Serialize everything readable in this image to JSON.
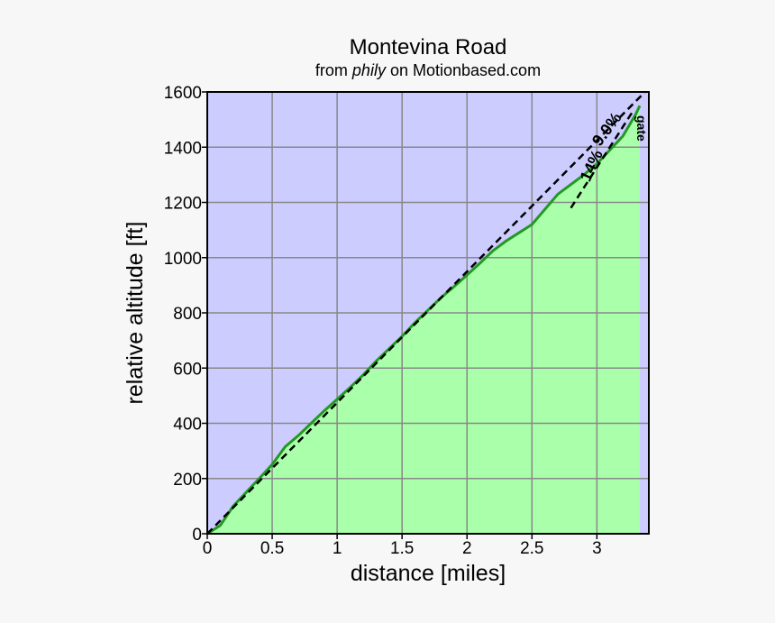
{
  "chart_data": {
    "type": "area",
    "title": "Montevina Road",
    "subtitle": {
      "before": "from",
      "user": "phily",
      "after": "on Motionbased.com"
    },
    "xlabel": "distance [miles]",
    "ylabel": "relative altitude [ft]",
    "xlim": [
      0,
      3.4
    ],
    "ylim": [
      0,
      1600
    ],
    "xticks": [
      0,
      0.5,
      1,
      1.5,
      2,
      2.5,
      3
    ],
    "yticks": [
      0,
      200,
      400,
      600,
      800,
      1000,
      1200,
      1400,
      1600
    ],
    "grid": true,
    "background": "#ccccff",
    "series": [
      {
        "color": "#229922",
        "fill": "#aaffaa",
        "x": [
          0,
          0.1,
          0.2,
          0.3,
          0.4,
          0.5,
          0.6,
          0.7,
          0.8,
          0.9,
          1.0,
          1.1,
          1.2,
          1.3,
          1.4,
          1.5,
          1.6,
          1.7,
          1.8,
          1.9,
          2.0,
          2.1,
          2.2,
          2.3,
          2.4,
          2.5,
          2.6,
          2.7,
          2.8,
          2.9,
          3.0,
          3.1,
          3.2,
          3.3,
          3.33
        ],
        "values": [
          0,
          30,
          100,
          150,
          200,
          251,
          315,
          355,
          400,
          445,
          487,
          530,
          575,
          625,
          670,
          715,
          765,
          810,
          855,
          895,
          937,
          980,
          1025,
          1060,
          1090,
          1120,
          1175,
          1230,
          1265,
          1300,
          1340,
          1390,
          1440,
          1520,
          1550
        ]
      }
    ],
    "reference_lines": [
      {
        "label": "9.0%",
        "x": [
          0,
          3.37
        ],
        "values": [
          0,
          1600
        ]
      },
      {
        "label": "14%",
        "x": [
          2.8,
          3.27
        ],
        "values": [
          1180,
          1525
        ]
      }
    ],
    "annotations": [
      {
        "text": "gate",
        "x": 3.33,
        "y": 1555
      }
    ]
  }
}
